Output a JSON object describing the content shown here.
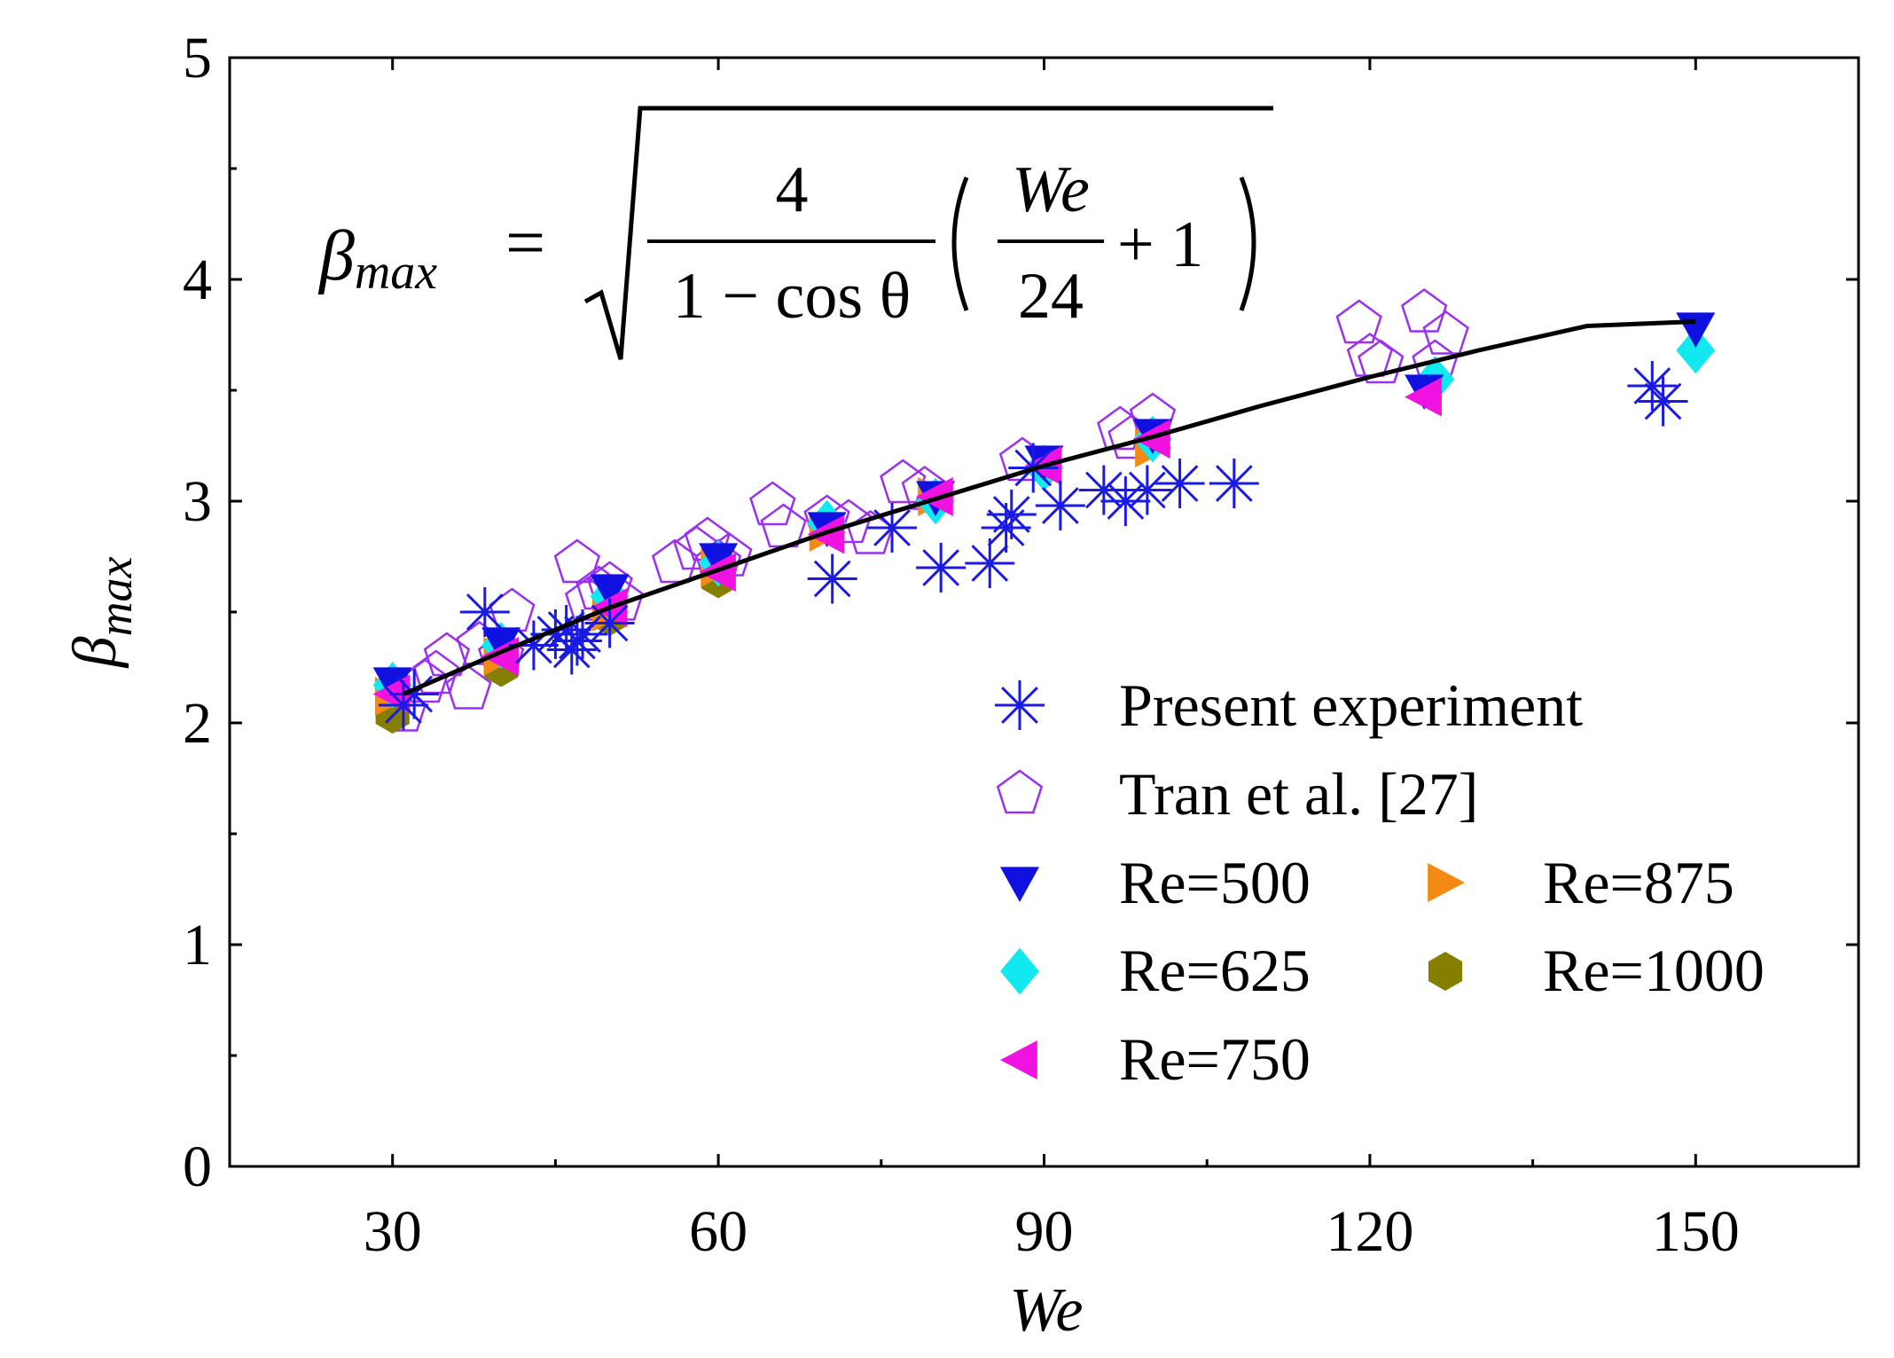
{
  "chart_data": {
    "type": "scatter",
    "xlabel": "We",
    "ylabel_main": "β",
    "ylabel_sub": "max",
    "xlim": [
      15,
      165
    ],
    "ylim": [
      0,
      5
    ],
    "x_ticks": [
      30,
      60,
      90,
      120,
      150
    ],
    "y_ticks": [
      0,
      1,
      2,
      3,
      4,
      5
    ],
    "x_tick_labels": [
      "30",
      "60",
      "90",
      "120",
      "150"
    ],
    "y_tick_labels": [
      "0",
      "1",
      "2",
      "3",
      "4",
      "5"
    ],
    "grid": false,
    "legend_position": "bottom-right",
    "formula": {
      "lhs": "β",
      "lhs_sub": "max",
      "equals": "=",
      "numerator": "4",
      "denominator": "1 − cos θ",
      "inner_numerator": "We",
      "inner_denominator": "24",
      "plus_one": "+ 1"
    },
    "fit_curve": {
      "name": "",
      "color": "#000000",
      "x": [
        31,
        40,
        50,
        60,
        70,
        80,
        90,
        100,
        110,
        120,
        130,
        140,
        150
      ],
      "y": [
        2.13,
        2.32,
        2.52,
        2.69,
        2.86,
        3.01,
        3.16,
        3.29,
        3.43,
        3.56,
        3.68,
        3.79,
        3.81
      ]
    },
    "series": [
      {
        "name": "Present experiment",
        "marker": "asterisk",
        "color": "#1a1ae6",
        "x": [
          31,
          32,
          38.5,
          43,
          45,
          46,
          46.5,
          47,
          47.5,
          50,
          70.5,
          76,
          80.5,
          85,
          86.5,
          87,
          89,
          91.5,
          95.5,
          97.5,
          99.5,
          102.5,
          107.5,
          146,
          147
        ],
        "y": [
          2.08,
          2.13,
          2.5,
          2.35,
          2.4,
          2.42,
          2.33,
          2.37,
          2.4,
          2.45,
          2.65,
          2.88,
          2.7,
          2.72,
          2.88,
          2.94,
          3.15,
          2.98,
          3.05,
          3.0,
          3.05,
          3.08,
          3.08,
          3.52,
          3.45
        ]
      },
      {
        "name": "Tran et al. [27]",
        "marker": "pentagon-open",
        "color": "#9b30f0",
        "x": [
          31,
          33,
          34,
          35,
          37,
          38,
          40,
          41,
          47,
          48,
          49,
          50,
          51,
          56,
          58,
          59,
          60,
          61,
          65,
          66,
          70,
          72,
          74,
          77,
          79,
          88,
          97,
          98,
          100,
          119,
          120,
          121,
          125,
          126,
          127
        ],
        "y": [
          2.05,
          2.18,
          2.22,
          2.3,
          2.15,
          2.35,
          2.3,
          2.5,
          2.72,
          2.55,
          2.6,
          2.62,
          2.55,
          2.72,
          2.78,
          2.82,
          2.72,
          2.75,
          2.98,
          2.88,
          2.92,
          2.9,
          2.85,
          3.08,
          3.05,
          3.18,
          3.32,
          3.28,
          3.38,
          3.8,
          3.65,
          3.62,
          3.85,
          3.62,
          3.75
        ]
      },
      {
        "name": "Re=500",
        "marker": "triangle-down",
        "color": "#1010e0",
        "x": [
          30,
          40,
          50,
          60,
          70,
          80,
          90,
          100,
          125,
          150
        ],
        "y": [
          2.18,
          2.36,
          2.6,
          2.74,
          2.88,
          3.02,
          3.18,
          3.3,
          3.5,
          3.78
        ]
      },
      {
        "name": "Re=625",
        "marker": "diamond",
        "color": "#12e8f0",
        "x": [
          30,
          40,
          50,
          60,
          70,
          80,
          90,
          100,
          126,
          150
        ],
        "y": [
          2.17,
          2.35,
          2.57,
          2.72,
          2.9,
          3.0,
          3.15,
          3.28,
          3.55,
          3.68
        ]
      },
      {
        "name": "Re=750",
        "marker": "triangle-left",
        "color": "#f012e0",
        "x": [
          30,
          40,
          50,
          60,
          70,
          80,
          90,
          100,
          125
        ],
        "y": [
          2.13,
          2.3,
          2.52,
          2.68,
          2.85,
          3.02,
          3.16,
          3.28,
          3.47
        ]
      },
      {
        "name": "Re=875",
        "marker": "triangle-right",
        "color": "#f28a14",
        "x": [
          30,
          40,
          50,
          60,
          70,
          80,
          100
        ],
        "y": [
          2.12,
          2.3,
          2.5,
          2.7,
          2.86,
          3.02,
          3.24
        ]
      },
      {
        "name": "Re=1000",
        "marker": "hexagon",
        "color": "#857f00",
        "x": [
          30,
          40,
          50,
          60
        ],
        "y": [
          2.04,
          2.25,
          2.48,
          2.65
        ]
      }
    ]
  }
}
